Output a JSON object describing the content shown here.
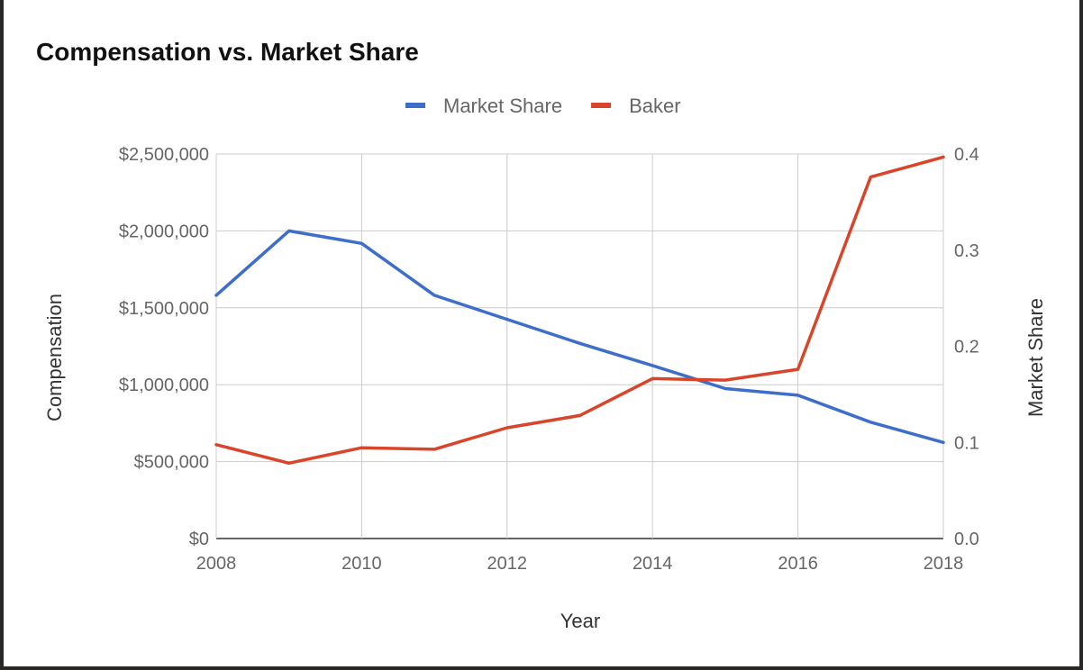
{
  "chart_data": {
    "type": "line",
    "title": "Compensation vs. Market Share",
    "xlabel": "Year",
    "ylabel_left": "Compensation",
    "ylabel_right": "Market Share",
    "legend_position": "top",
    "grid": true,
    "x": [
      2008,
      2009,
      2010,
      2011,
      2012,
      2013,
      2014,
      2015,
      2016,
      2017,
      2018
    ],
    "x_ticks": [
      "2008",
      "2010",
      "2012",
      "2014",
      "2016",
      "2018"
    ],
    "xlim": [
      2008,
      2018
    ],
    "ylim_left": [
      0,
      2500000
    ],
    "ylim_right": [
      0,
      0.4
    ],
    "y_ticks_left": [
      "$0",
      "$500,000",
      "$1,000,000",
      "$1,500,000",
      "$2,000,000",
      "$2,500,000"
    ],
    "y_ticks_right": [
      "0.0",
      "0.1",
      "0.2",
      "0.3",
      "0.4"
    ],
    "series": [
      {
        "name": "Market Share",
        "axis": "right",
        "color": "#3d6ec9",
        "values": [
          0.253,
          0.32,
          0.307,
          0.253,
          0.228,
          0.203,
          0.18,
          0.156,
          0.149,
          0.121,
          0.1
        ]
      },
      {
        "name": "Baker",
        "axis": "left",
        "color": "#d9452b",
        "values": [
          610000,
          490000,
          590000,
          580000,
          720000,
          800000,
          1040000,
          1030000,
          1100000,
          2350000,
          2480000
        ]
      }
    ]
  }
}
